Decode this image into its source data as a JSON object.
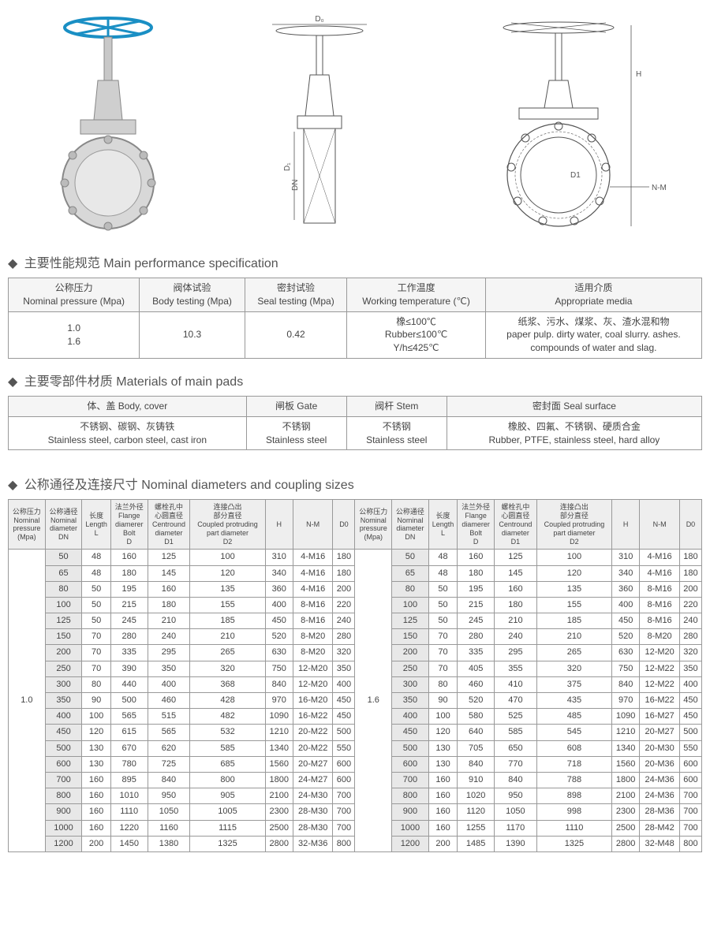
{
  "diagrams": {
    "labels": [
      "D₀",
      "D₁",
      "DN",
      "H",
      "D1",
      "N-M"
    ]
  },
  "perf": {
    "title_cn": "主要性能规范",
    "title_en": "Main performance specification",
    "headers": [
      {
        "cn": "公称压力",
        "en": "Nominal pressure (Mpa)"
      },
      {
        "cn": "阀体试验",
        "en": "Body testing (Mpa)"
      },
      {
        "cn": "密封试验",
        "en": "Seal testing (Mpa)"
      },
      {
        "cn": "工作温度",
        "en": "Working temperature (℃)"
      },
      {
        "cn": "适用介质",
        "en": "Appropriate media"
      }
    ],
    "row": {
      "pressure": "1.0\n1.6",
      "body": "10.3",
      "seal": "0.42",
      "temp": "橡≤100℃\nRubber≤100℃\nY/h≤425℃",
      "media": "纸浆、污水、煤浆、灰、渣水混和物\npaper pulp. dirty water, coal slurry. ashes.\ncompounds of water and slag."
    }
  },
  "mat": {
    "title_cn": "主要零部件材质",
    "title_en": "Materials of main pads",
    "headers": [
      {
        "cn": "体、盖",
        "en": "Body, cover"
      },
      {
        "cn": "闸板",
        "en": "Gate"
      },
      {
        "cn": "阀杆",
        "en": "Stem"
      },
      {
        "cn": "密封面",
        "en": "Seal surface"
      }
    ],
    "row": {
      "body": "不锈钢、碳钢、灰铸铁\nStainless steel, carbon steel, cast iron",
      "gate": "不锈钢\nStainless steel",
      "stem": "不锈钢\nStainless steel",
      "seal": "橡胶、四氟、不锈钢、硬质合金\nRubber, PTFE, stainless steel, hard alloy"
    }
  },
  "dim": {
    "title_cn": "公称通径及连接尺寸",
    "title_en": "Nominal diameters and coupling sizes",
    "headers": [
      "公称压力\nNominal\npressure\n(Mpa)",
      "公称通径\nNominal\ndiameter\nDN",
      "长度\nLength\nL",
      "法兰外径\nFlange\ndiamerer\nBolt\nD",
      "螺栓孔中\n心圆直径\nCentround\ndiameter\nD1",
      "连接凸出\n部分直径\nCoupled protruding\npart diameter\nD2",
      "H",
      "N-M",
      "D0",
      "公称压力\nNominal\npressure\n(Mpa)",
      "公称通径\nNominal\ndiameter\nDN",
      "长度\nLength\nL",
      "法兰外径\nFlange\ndiamerer\nBolt\nD",
      "螺栓孔中\n心圆直径\nCentround\ndiameter\nD1",
      "连接凸出\n部分直径\nCoupled protruding\npart diameter\nD2",
      "H",
      "N-M",
      "D0"
    ],
    "pressure_left": "1.0",
    "pressure_right": "1.6",
    "rows": [
      {
        "dn": "50",
        "l": "48",
        "d": "160",
        "d1": "125",
        "d2": "100",
        "h": "310",
        "nm": "4-M16",
        "d0": "180",
        "dn2": "50",
        "l2": "48",
        "d_2": "160",
        "d1_2": "125",
        "d2_2": "100",
        "h2": "310",
        "nm2": "4-M16",
        "d0_2": "180"
      },
      {
        "dn": "65",
        "l": "48",
        "d": "180",
        "d1": "145",
        "d2": "120",
        "h": "340",
        "nm": "4-M16",
        "d0": "180",
        "dn2": "65",
        "l2": "48",
        "d_2": "180",
        "d1_2": "145",
        "d2_2": "120",
        "h2": "340",
        "nm2": "4-M16",
        "d0_2": "180"
      },
      {
        "dn": "80",
        "l": "50",
        "d": "195",
        "d1": "160",
        "d2": "135",
        "h": "360",
        "nm": "4-M16",
        "d0": "200",
        "dn2": "80",
        "l2": "50",
        "d_2": "195",
        "d1_2": "160",
        "d2_2": "135",
        "h2": "360",
        "nm2": "8-M16",
        "d0_2": "200"
      },
      {
        "dn": "100",
        "l": "50",
        "d": "215",
        "d1": "180",
        "d2": "155",
        "h": "400",
        "nm": "8-M16",
        "d0": "220",
        "dn2": "100",
        "l2": "50",
        "d_2": "215",
        "d1_2": "180",
        "d2_2": "155",
        "h2": "400",
        "nm2": "8-M16",
        "d0_2": "220"
      },
      {
        "dn": "125",
        "l": "50",
        "d": "245",
        "d1": "210",
        "d2": "185",
        "h": "450",
        "nm": "8-M16",
        "d0": "240",
        "dn2": "125",
        "l2": "50",
        "d_2": "245",
        "d1_2": "210",
        "d2_2": "185",
        "h2": "450",
        "nm2": "8-M16",
        "d0_2": "240"
      },
      {
        "dn": "150",
        "l": "70",
        "d": "280",
        "d1": "240",
        "d2": "210",
        "h": "520",
        "nm": "8-M20",
        "d0": "280",
        "dn2": "150",
        "l2": "70",
        "d_2": "280",
        "d1_2": "240",
        "d2_2": "210",
        "h2": "520",
        "nm2": "8-M20",
        "d0_2": "280"
      },
      {
        "dn": "200",
        "l": "70",
        "d": "335",
        "d1": "295",
        "d2": "265",
        "h": "630",
        "nm": "8-M20",
        "d0": "320",
        "dn2": "200",
        "l2": "70",
        "d_2": "335",
        "d1_2": "295",
        "d2_2": "265",
        "h2": "630",
        "nm2": "12-M20",
        "d0_2": "320"
      },
      {
        "dn": "250",
        "l": "70",
        "d": "390",
        "d1": "350",
        "d2": "320",
        "h": "750",
        "nm": "12-M20",
        "d0": "350",
        "dn2": "250",
        "l2": "70",
        "d_2": "405",
        "d1_2": "355",
        "d2_2": "320",
        "h2": "750",
        "nm2": "12-M22",
        "d0_2": "350"
      },
      {
        "dn": "300",
        "l": "80",
        "d": "440",
        "d1": "400",
        "d2": "368",
        "h": "840",
        "nm": "12-M20",
        "d0": "400",
        "dn2": "300",
        "l2": "80",
        "d_2": "460",
        "d1_2": "410",
        "d2_2": "375",
        "h2": "840",
        "nm2": "12-M22",
        "d0_2": "400"
      },
      {
        "dn": "350",
        "l": "90",
        "d": "500",
        "d1": "460",
        "d2": "428",
        "h": "970",
        "nm": "16-M20",
        "d0": "450",
        "dn2": "350",
        "l2": "90",
        "d_2": "520",
        "d1_2": "470",
        "d2_2": "435",
        "h2": "970",
        "nm2": "16-M22",
        "d0_2": "450"
      },
      {
        "dn": "400",
        "l": "100",
        "d": "565",
        "d1": "515",
        "d2": "482",
        "h": "1090",
        "nm": "16-M22",
        "d0": "450",
        "dn2": "400",
        "l2": "100",
        "d_2": "580",
        "d1_2": "525",
        "d2_2": "485",
        "h2": "1090",
        "nm2": "16-M27",
        "d0_2": "450"
      },
      {
        "dn": "450",
        "l": "120",
        "d": "615",
        "d1": "565",
        "d2": "532",
        "h": "1210",
        "nm": "20-M22",
        "d0": "500",
        "dn2": "450",
        "l2": "120",
        "d_2": "640",
        "d1_2": "585",
        "d2_2": "545",
        "h2": "1210",
        "nm2": "20-M27",
        "d0_2": "500"
      },
      {
        "dn": "500",
        "l": "130",
        "d": "670",
        "d1": "620",
        "d2": "585",
        "h": "1340",
        "nm": "20-M22",
        "d0": "550",
        "dn2": "500",
        "l2": "130",
        "d_2": "705",
        "d1_2": "650",
        "d2_2": "608",
        "h2": "1340",
        "nm2": "20-M30",
        "d0_2": "550"
      },
      {
        "dn": "600",
        "l": "130",
        "d": "780",
        "d1": "725",
        "d2": "685",
        "h": "1560",
        "nm": "20-M27",
        "d0": "600",
        "dn2": "600",
        "l2": "130",
        "d_2": "840",
        "d1_2": "770",
        "d2_2": "718",
        "h2": "1560",
        "nm2": "20-M36",
        "d0_2": "600"
      },
      {
        "dn": "700",
        "l": "160",
        "d": "895",
        "d1": "840",
        "d2": "800",
        "h": "1800",
        "nm": "24-M27",
        "d0": "600",
        "dn2": "700",
        "l2": "160",
        "d_2": "910",
        "d1_2": "840",
        "d2_2": "788",
        "h2": "1800",
        "nm2": "24-M36",
        "d0_2": "600"
      },
      {
        "dn": "800",
        "l": "160",
        "d": "1010",
        "d1": "950",
        "d2": "905",
        "h": "2100",
        "nm": "24-M30",
        "d0": "700",
        "dn2": "800",
        "l2": "160",
        "d_2": "1020",
        "d1_2": "950",
        "d2_2": "898",
        "h2": "2100",
        "nm2": "24-M36",
        "d0_2": "700"
      },
      {
        "dn": "900",
        "l": "160",
        "d": "1110",
        "d1": "1050",
        "d2": "1005",
        "h": "2300",
        "nm": "28-M30",
        "d0": "700",
        "dn2": "900",
        "l2": "160",
        "d_2": "1120",
        "d1_2": "1050",
        "d2_2": "998",
        "h2": "2300",
        "nm2": "28-M36",
        "d0_2": "700"
      },
      {
        "dn": "1000",
        "l": "160",
        "d": "1220",
        "d1": "1160",
        "d2": "1115",
        "h": "2500",
        "nm": "28-M30",
        "d0": "700",
        "dn2": "1000",
        "l2": "160",
        "d_2": "1255",
        "d1_2": "1170",
        "d2_2": "1110",
        "h2": "2500",
        "nm2": "28-M42",
        "d0_2": "700"
      },
      {
        "dn": "1200",
        "l": "200",
        "d": "1450",
        "d1": "1380",
        "d2": "1325",
        "h": "2800",
        "nm": "32-M36",
        "d0": "800",
        "dn2": "1200",
        "l2": "200",
        "d_2": "1485",
        "d1_2": "1390",
        "d2_2": "1325",
        "h2": "2800",
        "nm2": "32-M48",
        "d0_2": "800"
      }
    ]
  }
}
